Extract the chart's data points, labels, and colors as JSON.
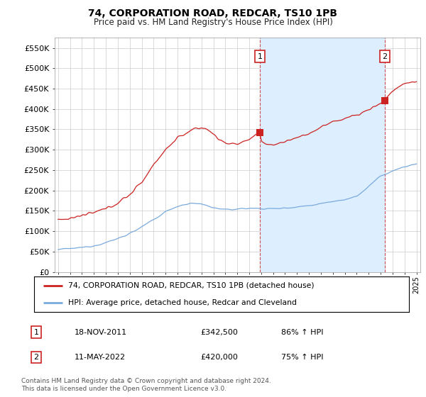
{
  "title": "74, CORPORATION ROAD, REDCAR, TS10 1PB",
  "subtitle": "Price paid vs. HM Land Registry's House Price Index (HPI)",
  "legend_line1": "74, CORPORATION ROAD, REDCAR, TS10 1PB (detached house)",
  "legend_line2": "HPI: Average price, detached house, Redcar and Cleveland",
  "annotation1_label": "1",
  "annotation1_date": "18-NOV-2011",
  "annotation1_price": "£342,500",
  "annotation1_hpi": "86% ↑ HPI",
  "annotation1_year": 2011.88,
  "annotation1_value": 342500,
  "annotation2_label": "2",
  "annotation2_date": "11-MAY-2022",
  "annotation2_price": "£420,000",
  "annotation2_hpi": "75% ↑ HPI",
  "annotation2_year": 2022.36,
  "annotation2_value": 420000,
  "price_color": "#cc2222",
  "hpi_color": "#7aaadd",
  "shade_color": "#ddeeff",
  "background_color": "#ffffff",
  "grid_color": "#cccccc",
  "ylim": [
    0,
    575000
  ],
  "yticks": [
    0,
    50000,
    100000,
    150000,
    200000,
    250000,
    300000,
    350000,
    400000,
    450000,
    500000,
    550000
  ],
  "footer": "Contains HM Land Registry data © Crown copyright and database right 2024.\nThis data is licensed under the Open Government Licence v3.0.",
  "hpi_anchors_x": [
    1995,
    1996,
    1997,
    1998,
    1999,
    2000,
    2001,
    2002,
    2003,
    2004,
    2005,
    2006,
    2007,
    2008,
    2009,
    2010,
    2011,
    2012,
    2013,
    2014,
    2015,
    2016,
    2017,
    2018,
    2019,
    2020,
    2021,
    2022,
    2023,
    2024,
    2025
  ],
  "hpi_anchors_y": [
    55000,
    57000,
    60000,
    65000,
    72000,
    82000,
    95000,
    110000,
    128000,
    148000,
    162000,
    168000,
    167000,
    158000,
    152000,
    155000,
    156000,
    156000,
    155000,
    157000,
    160000,
    163000,
    168000,
    174000,
    178000,
    185000,
    210000,
    235000,
    248000,
    258000,
    265000
  ],
  "price_anchors_x": [
    1995,
    1996,
    1997,
    1998,
    1999,
    2000,
    2001,
    2002,
    2003,
    2004,
    2005,
    2006,
    2007,
    2007.5,
    2008,
    2009,
    2010,
    2011,
    2011.88,
    2012,
    2013,
    2014,
    2015,
    2016,
    2017,
    2018,
    2019,
    2020,
    2021,
    2022,
    2022.36,
    2022.5,
    2023,
    2024,
    2025
  ],
  "price_anchors_y": [
    128000,
    132000,
    138000,
    145000,
    155000,
    170000,
    190000,
    220000,
    265000,
    300000,
    330000,
    345000,
    355000,
    350000,
    338000,
    315000,
    315000,
    325000,
    342500,
    318000,
    312000,
    320000,
    330000,
    340000,
    355000,
    368000,
    378000,
    385000,
    398000,
    415000,
    420000,
    428000,
    445000,
    462000,
    468000
  ]
}
